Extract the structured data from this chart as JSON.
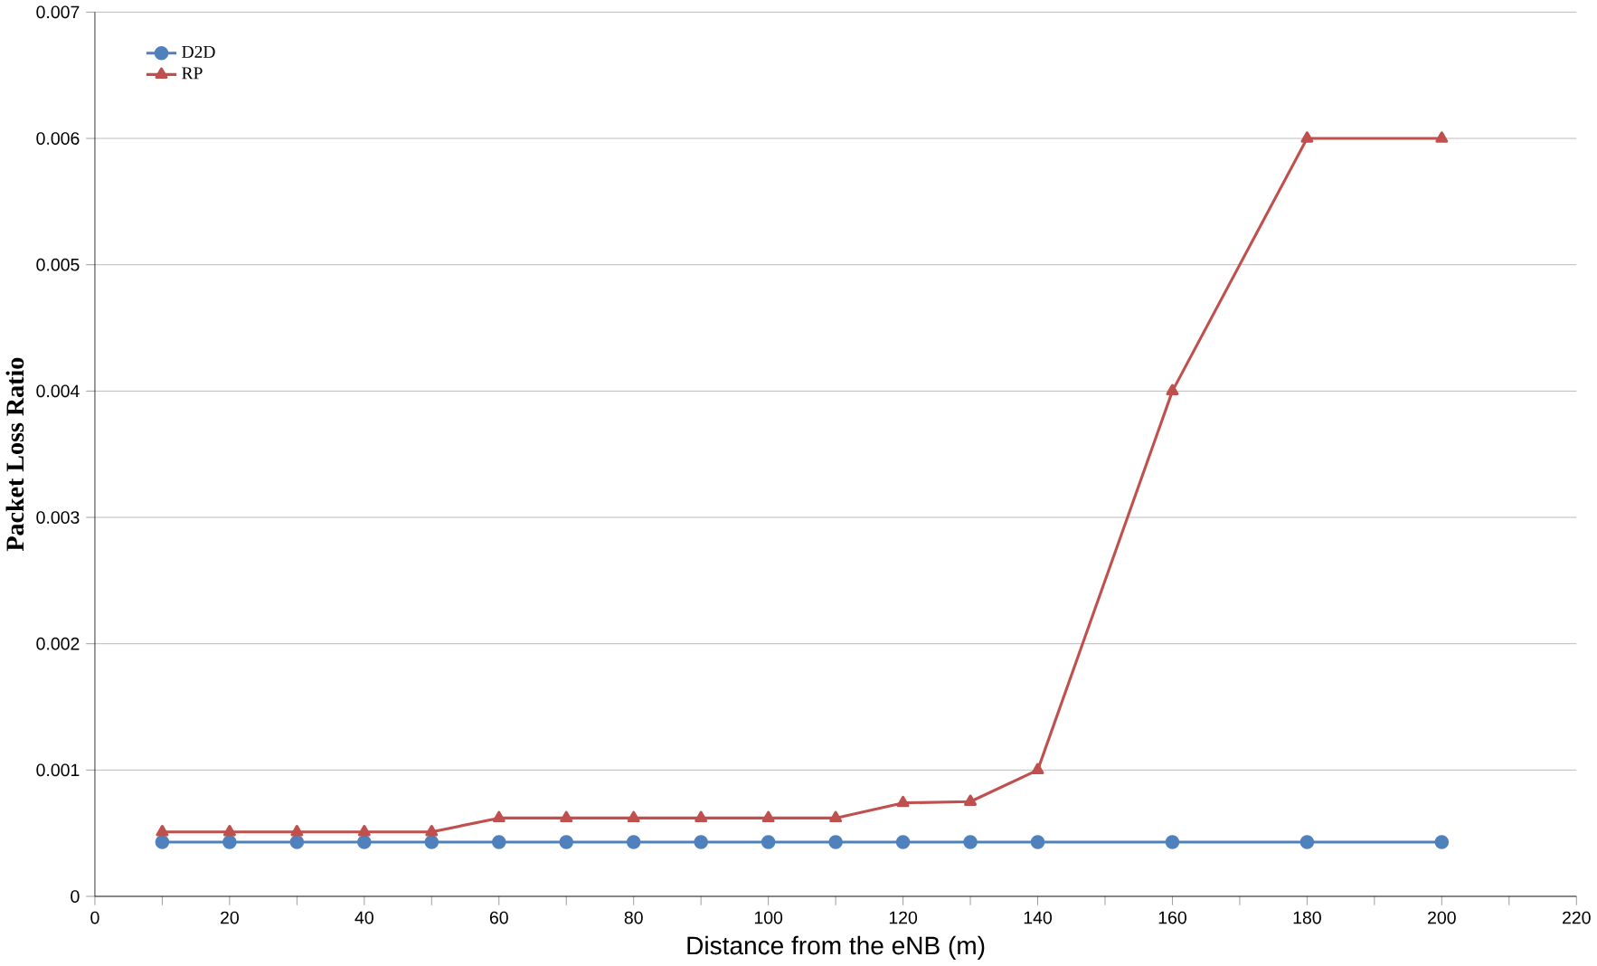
{
  "chart_data": {
    "type": "line",
    "xlabel": "Distance from the eNB (m)",
    "ylabel": "Packet Loss Ratio",
    "xlim": [
      0,
      220
    ],
    "ylim": [
      0,
      0.007
    ],
    "xticks": [
      0,
      {
        "value": 10,
        "label": null
      },
      20,
      {
        "value": 30,
        "label": null
      },
      40,
      {
        "value": 50,
        "label": null
      },
      60,
      {
        "value": 70,
        "label": null
      },
      80,
      {
        "value": 90,
        "label": null
      },
      100,
      {
        "value": 110,
        "label": null
      },
      120,
      {
        "value": 130,
        "label": null
      },
      140,
      {
        "value": 150,
        "label": null
      },
      160,
      {
        "value": 170,
        "label": null
      },
      180,
      {
        "value": 190,
        "label": null
      },
      200,
      {
        "value": 210,
        "label": null
      },
      220
    ],
    "yticks": [
      0,
      0.001,
      0.002,
      0.003,
      0.004,
      0.005,
      0.006,
      0.007
    ],
    "grid": "y",
    "legend": "top left",
    "series": [
      {
        "name": "D2D",
        "color": "#4f81bd",
        "marker": "circle",
        "x": [
          10,
          20,
          30,
          40,
          50,
          60,
          70,
          80,
          90,
          100,
          110,
          120,
          130,
          140,
          160,
          180,
          200
        ],
        "values": [
          0.00043,
          0.00043,
          0.00043,
          0.00043,
          0.00043,
          0.00043,
          0.00043,
          0.00043,
          0.00043,
          0.00043,
          0.00043,
          0.00043,
          0.00043,
          0.00043,
          0.00043,
          0.00043,
          0.00043
        ]
      },
      {
        "name": "RP",
        "color": "#c0504d",
        "marker": "triangle",
        "x": [
          10,
          20,
          30,
          40,
          50,
          60,
          70,
          80,
          90,
          100,
          110,
          120,
          130,
          140,
          160,
          180,
          200
        ],
        "values": [
          0.00051,
          0.00051,
          0.00051,
          0.00051,
          0.00051,
          0.00062,
          0.00062,
          0.00062,
          0.00062,
          0.00062,
          0.00062,
          0.00074,
          0.00075,
          0.001,
          0.004,
          0.006,
          0.006
        ]
      }
    ]
  }
}
